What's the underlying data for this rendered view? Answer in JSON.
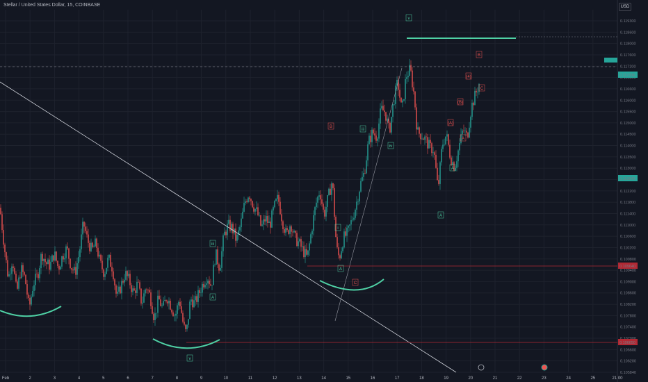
{
  "header": {
    "title": "Stellar / United States Dollar, 15, COINBASE",
    "currency": "USD"
  },
  "colors": {
    "background": "#131722",
    "up": "#26a69a",
    "down": "#ef5350",
    "grid": "#1e222d",
    "trendline": "#d1d4dc",
    "hline": "#b22833",
    "arc": "#4fd1a5"
  },
  "chart_data": {
    "type": "candlestick",
    "symbol": "XLMUSD",
    "timeframe": "15",
    "ylim": [
      0.10548,
      0.11985
    ],
    "y_ticks": [
      "0.119300",
      "0.118600",
      "0.118000",
      "0.117600",
      "0.117200",
      "0.116800",
      "0.116600",
      "0.116000",
      "0.115500",
      "0.115000",
      "0.114500",
      "0.114000",
      "0.113500",
      "0.113000",
      "0.112600",
      "0.112200",
      "0.111800",
      "0.111400",
      "0.111000",
      "0.110600",
      "0.110200",
      "0.109800",
      "0.109400",
      "0.109000",
      "0.108600",
      "0.108200",
      "0.107800",
      "0.107400",
      "0.107000",
      "0.106600",
      "0.106200",
      "0.105840"
    ],
    "x_ticks": [
      "Feb",
      "2",
      "3",
      "4",
      "5",
      "6",
      "7",
      "8",
      "9",
      "10",
      "11",
      "12",
      "13",
      "14",
      "15",
      "16",
      "17",
      "18",
      "19",
      "20",
      "21",
      "22",
      "23",
      "24",
      "25",
      "21:00"
    ],
    "price_path": [
      [
        0,
        0.112
      ],
      [
        6,
        0.1105
      ],
      [
        12,
        0.1092
      ],
      [
        18,
        0.11
      ],
      [
        24,
        0.1086
      ],
      [
        30,
        0.1096
      ],
      [
        36,
        0.1092
      ],
      [
        42,
        0.108
      ],
      [
        48,
        0.109
      ],
      [
        54,
        0.1093
      ],
      [
        60,
        0.1102
      ],
      [
        66,
        0.1098
      ],
      [
        72,
        0.1097
      ],
      [
        78,
        0.1102
      ],
      [
        84,
        0.1096
      ],
      [
        90,
        0.1101
      ],
      [
        96,
        0.1104
      ],
      [
        102,
        0.1097
      ],
      [
        108,
        0.1094
      ],
      [
        114,
        0.1102
      ],
      [
        120,
        0.1114
      ],
      [
        126,
        0.1107
      ],
      [
        132,
        0.1103
      ],
      [
        138,
        0.1106
      ],
      [
        144,
        0.1098
      ],
      [
        150,
        0.1094
      ],
      [
        156,
        0.11
      ],
      [
        162,
        0.1096
      ],
      [
        168,
        0.1084
      ],
      [
        174,
        0.1089
      ],
      [
        180,
        0.1094
      ],
      [
        186,
        0.1091
      ],
      [
        192,
        0.1086
      ],
      [
        198,
        0.109
      ],
      [
        204,
        0.1082
      ],
      [
        210,
        0.1089
      ],
      [
        216,
        0.1085
      ],
      [
        222,
        0.1076
      ],
      [
        228,
        0.1084
      ],
      [
        234,
        0.108
      ],
      [
        240,
        0.1085
      ],
      [
        246,
        0.1081
      ],
      [
        252,
        0.1077
      ],
      [
        258,
        0.1084
      ],
      [
        264,
        0.1073
      ],
      [
        268,
        0.107
      ],
      [
        274,
        0.1084
      ],
      [
        280,
        0.1082
      ],
      [
        286,
        0.1086
      ],
      [
        292,
        0.109
      ],
      [
        298,
        0.1093
      ],
      [
        304,
        0.1089
      ],
      [
        310,
        0.1102
      ],
      [
        316,
        0.1096
      ],
      [
        322,
        0.1109
      ],
      [
        328,
        0.1113
      ],
      [
        334,
        0.1112
      ],
      [
        340,
        0.1107
      ],
      [
        346,
        0.1113
      ],
      [
        352,
        0.1122
      ],
      [
        358,
        0.1126
      ],
      [
        364,
        0.1121
      ],
      [
        370,
        0.1118
      ],
      [
        376,
        0.1112
      ],
      [
        382,
        0.1116
      ],
      [
        388,
        0.1113
      ],
      [
        394,
        0.112
      ],
      [
        400,
        0.1124
      ],
      [
        406,
        0.1115
      ],
      [
        412,
        0.1109
      ],
      [
        418,
        0.1114
      ],
      [
        424,
        0.1108
      ],
      [
        430,
        0.1106
      ],
      [
        436,
        0.1103
      ],
      [
        442,
        0.11
      ],
      [
        448,
        0.1111
      ],
      [
        454,
        0.1121
      ],
      [
        460,
        0.1127
      ],
      [
        466,
        0.1117
      ],
      [
        472,
        0.1124
      ],
      [
        478,
        0.1131
      ],
      [
        484,
        0.1104
      ],
      [
        488,
        0.11
      ],
      [
        494,
        0.1108
      ],
      [
        500,
        0.111
      ],
      [
        506,
        0.1115
      ],
      [
        512,
        0.1121
      ],
      [
        518,
        0.1129
      ],
      [
        524,
        0.1134
      ],
      [
        530,
        0.1146
      ],
      [
        536,
        0.115
      ],
      [
        542,
        0.1148
      ],
      [
        548,
        0.1159
      ],
      [
        554,
        0.1158
      ],
      [
        560,
        0.115
      ],
      [
        566,
        0.1162
      ],
      [
        572,
        0.117
      ],
      [
        578,
        0.1158
      ],
      [
        584,
        0.1172
      ],
      [
        590,
        0.1175
      ],
      [
        596,
        0.1164
      ],
      [
        600,
        0.115
      ],
      [
        606,
        0.1149
      ],
      [
        612,
        0.1147
      ],
      [
        618,
        0.1144
      ],
      [
        624,
        0.1143
      ],
      [
        630,
        0.1127
      ],
      [
        636,
        0.1145
      ],
      [
        642,
        0.1149
      ],
      [
        648,
        0.114
      ],
      [
        654,
        0.1136
      ],
      [
        660,
        0.1144
      ],
      [
        666,
        0.1151
      ],
      [
        672,
        0.1148
      ],
      [
        678,
        0.116
      ],
      [
        684,
        0.1165
      ],
      [
        690,
        0.117
      ]
    ],
    "horizontal_levels": [
      {
        "price_label": "0.109640",
        "color": "#b22833"
      },
      {
        "price_label": "0.106650",
        "color": "#b22833"
      },
      {
        "price_label": "0.118400",
        "color": "#4fd1a5"
      }
    ],
    "price_labels": [
      {
        "text": "0.117336",
        "color": "#26a69a"
      },
      {
        "text": "0.113843",
        "color": "#26a69a"
      },
      {
        "text": "0.109640",
        "color": "#b22833"
      },
      {
        "text": "0.106650",
        "color": "#b22833"
      }
    ],
    "wave_labels": [
      {
        "text": "v",
        "color": "#4fd1a5"
      },
      {
        "text": "v",
        "color": "#4fd1a5"
      },
      {
        "text": "iii",
        "color": "#4fd1a5"
      },
      {
        "text": "iv",
        "color": "#4fd1a5"
      },
      {
        "text": "A",
        "color": "#4fd1a5"
      },
      {
        "text": "A",
        "color": "#4fd1a5"
      },
      {
        "text": "i",
        "color": "#4fd1a5"
      },
      {
        "text": "B",
        "color": "#ef5350"
      },
      {
        "text": "C",
        "color": "#ef5350"
      },
      {
        "text": "(A)",
        "color": "#ef5350"
      },
      {
        "text": "(4)",
        "color": "#ef5350"
      },
      {
        "text": "(B)",
        "color": "#ef5350"
      },
      {
        "text": "A",
        "color": "#4fd1a5"
      },
      {
        "text": "B",
        "color": "#ef5350"
      },
      {
        "text": "A",
        "color": "#ef5350"
      },
      {
        "text": "C",
        "color": "#ef5350"
      },
      {
        "text": "A",
        "color": "#4fd1a5"
      },
      {
        "text": "iii",
        "color": "#4fd1a5"
      }
    ]
  }
}
